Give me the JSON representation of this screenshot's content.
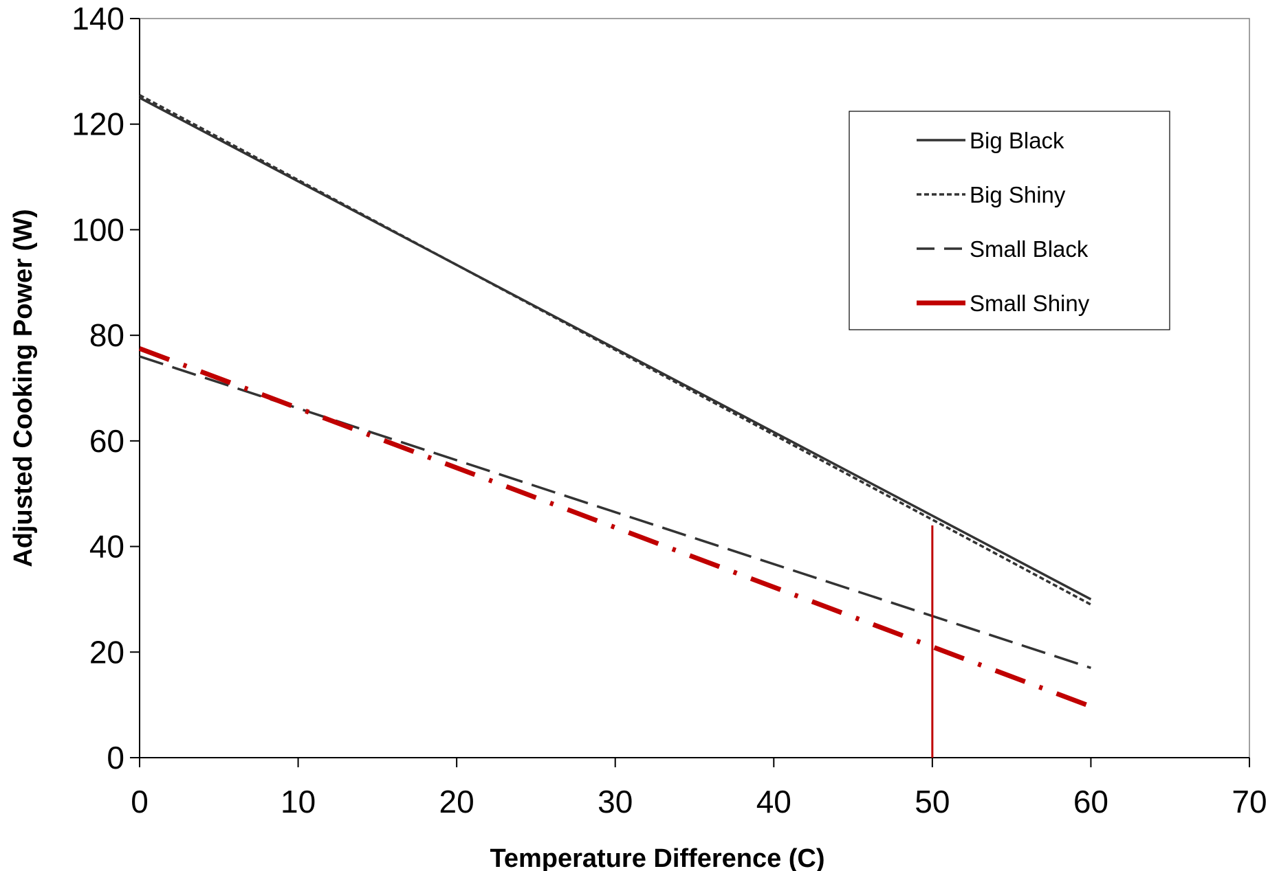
{
  "chart_data": {
    "type": "line",
    "title": "",
    "xlabel": "Temperature Difference (C)",
    "ylabel": "Adjusted Cooking Power (W)",
    "xlim": [
      0,
      70
    ],
    "ylim": [
      0,
      140
    ],
    "xticks": [
      "0",
      "10",
      "20",
      "30",
      "40",
      "50",
      "60",
      "70"
    ],
    "yticks": [
      "0",
      "20",
      "40",
      "60",
      "80",
      "100",
      "120",
      "140"
    ],
    "grid": false,
    "legend_position": "top-right",
    "series": [
      {
        "name": "Big Black",
        "style": "solid",
        "color": "#333333",
        "x": [
          0,
          60
        ],
        "y": [
          125,
          30
        ]
      },
      {
        "name": "Big Shiny",
        "style": "dotted",
        "color": "#333333",
        "x": [
          0,
          60
        ],
        "y": [
          125.5,
          29
        ]
      },
      {
        "name": "Small Black",
        "style": "long-dash",
        "color": "#333333",
        "x": [
          0,
          60
        ],
        "y": [
          76,
          17
        ]
      },
      {
        "name": "Small Shiny",
        "style": "dash-dot",
        "color": "#c00000",
        "x": [
          0,
          60
        ],
        "y": [
          77.5,
          9.7
        ]
      }
    ],
    "reference_lines": [
      {
        "orientation": "vertical",
        "x": 50,
        "y_range": [
          0,
          44
        ],
        "color": "#c00000"
      }
    ]
  }
}
